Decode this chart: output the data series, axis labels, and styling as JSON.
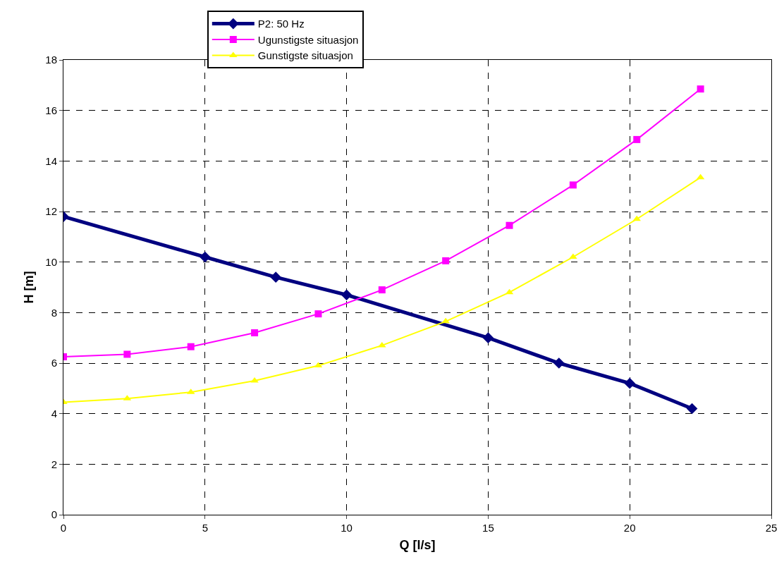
{
  "chart_data": {
    "type": "line",
    "xlabel": "Q [l/s]",
    "ylabel": "H [m]",
    "xlim": [
      0,
      25
    ],
    "xticks": [
      0,
      5,
      10,
      15,
      20,
      25
    ],
    "ylim": [
      0,
      18
    ],
    "yticks": [
      0,
      2,
      4,
      6,
      8,
      10,
      12,
      14,
      16,
      18
    ],
    "grid": true,
    "legend": "top",
    "line_style": "solid",
    "series": [
      {
        "name": "P2: 50 Hz",
        "color": "#000080",
        "marker": "diamond",
        "x": [
          0,
          5,
          7.5,
          10,
          15,
          17.5,
          20,
          22.2
        ],
        "values": [
          11.8,
          10.2,
          9.4,
          8.7,
          7.0,
          6.0,
          5.2,
          4.2
        ]
      },
      {
        "name": "Ugunstigste situasjon",
        "color": "#ff00ff",
        "marker": "square",
        "x": [
          0,
          2.25,
          4.5,
          6.75,
          9,
          11.25,
          13.5,
          15.75,
          18,
          20.25,
          22.5
        ],
        "values": [
          6.25,
          6.35,
          6.65,
          7.2,
          7.95,
          8.9,
          10.05,
          11.45,
          13.05,
          14.85,
          16.85
        ]
      },
      {
        "name": "Gunstigste situasjon",
        "color": "#ffff00",
        "marker": "triangle",
        "x": [
          0,
          2.25,
          4.5,
          6.75,
          9,
          11.25,
          13.5,
          15.75,
          18,
          20.25,
          22.5
        ],
        "values": [
          4.45,
          4.6,
          4.85,
          5.3,
          5.9,
          6.7,
          7.65,
          8.8,
          10.2,
          11.7,
          13.35
        ]
      }
    ]
  }
}
